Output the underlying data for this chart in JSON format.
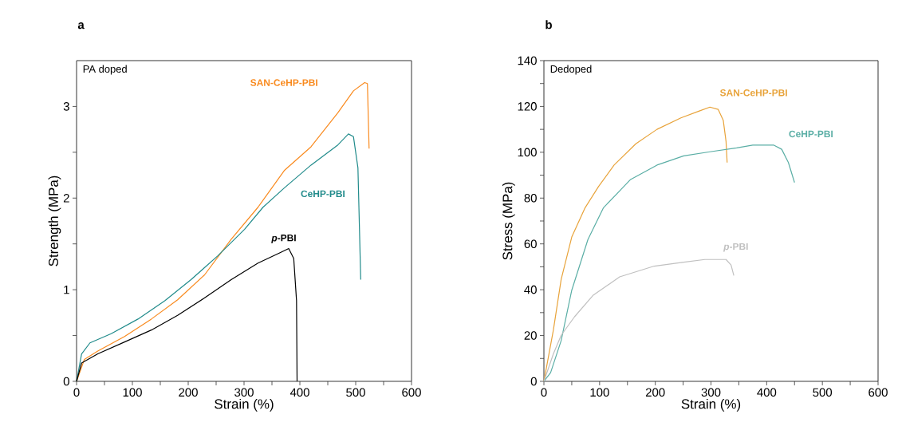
{
  "chart_data": [
    {
      "type": "line",
      "title": "a",
      "xlabel": "Strain (%)",
      "ylabel": "Strength (MPa)",
      "annotations": [
        "PA doped"
      ],
      "xlim": [
        0,
        600
      ],
      "ylim": [
        0,
        3.5
      ],
      "xticks": [
        0,
        {
          "value": 50,
          "label": null
        },
        100,
        {
          "value": 150,
          "label": null
        },
        200,
        {
          "value": 250,
          "label": null
        },
        300,
        {
          "value": 350,
          "label": null
        },
        400,
        {
          "value": 450,
          "label": null
        },
        500,
        {
          "value": 550,
          "label": null
        },
        600
      ],
      "yticks": [
        0,
        {
          "value": 0.5,
          "label": null
        },
        1,
        {
          "value": 1.5,
          "label": null
        },
        2,
        {
          "value": 2.5,
          "label": null
        },
        3
      ],
      "series": [
        {
          "name": "SAN-CeHP-PBI",
          "color": "#f98a1e",
          "x": [
            0,
            14,
            38,
            86,
            134,
            181,
            229,
            277,
            325,
            372,
            420,
            468,
            496,
            516,
            521,
            524
          ],
          "values": [
            0,
            0.24,
            0.33,
            0.49,
            0.68,
            0.89,
            1.16,
            1.55,
            1.9,
            2.3,
            2.56,
            2.93,
            3.17,
            3.26,
            3.25,
            2.54
          ]
        },
        {
          "name": "CeHP-PBI",
          "color": "#218b8b",
          "x": [
            0,
            9,
            24,
            62,
            110,
            158,
            205,
            253,
            301,
            334,
            372,
            420,
            468,
            487,
            496,
            504,
            509
          ],
          "values": [
            0,
            0.3,
            0.42,
            0.52,
            0.68,
            0.88,
            1.11,
            1.37,
            1.66,
            1.9,
            2.11,
            2.36,
            2.58,
            2.7,
            2.67,
            2.33,
            1.11
          ]
        },
        {
          "name": "*p*-PBI",
          "color": "#000000",
          "x": [
            0,
            9,
            38,
            86,
            134,
            181,
            229,
            277,
            325,
            363,
            380,
            389,
            394,
            395
          ],
          "values": [
            0,
            0.2,
            0.3,
            0.43,
            0.56,
            0.72,
            0.91,
            1.11,
            1.29,
            1.4,
            1.45,
            1.34,
            0.88,
            0
          ]
        }
      ]
    },
    {
      "type": "line",
      "title": "b",
      "xlabel": "Strain (%)",
      "ylabel": "Stress (MPa)",
      "annotations": [
        "Dedoped"
      ],
      "xlim": [
        0,
        600
      ],
      "ylim": [
        0,
        140
      ],
      "xticks": [
        0,
        {
          "value": 50,
          "label": null
        },
        100,
        {
          "value": 150,
          "label": null
        },
        200,
        {
          "value": 250,
          "label": null
        },
        300,
        {
          "value": 350,
          "label": null
        },
        400,
        {
          "value": 450,
          "label": null
        },
        500,
        {
          "value": 550,
          "label": null
        },
        600
      ],
      "yticks": [
        0,
        {
          "value": 10,
          "label": null
        },
        20,
        {
          "value": 30,
          "label": null
        },
        40,
        {
          "value": 50,
          "label": null
        },
        60,
        {
          "value": 70,
          "label": null
        },
        80,
        {
          "value": 90,
          "label": null
        },
        100,
        {
          "value": 110,
          "label": null
        },
        120,
        {
          "value": 130,
          "label": null
        },
        140
      ],
      "series": [
        {
          "name": "SAN-CeHP-PBI",
          "color": "#e8a33a",
          "x": [
            0,
            17,
            31,
            50,
            74,
            98,
            126,
            165,
            203,
            246,
            279,
            298,
            313,
            322,
            327,
            329
          ],
          "values": [
            0,
            22.4,
            44.5,
            63,
            75.8,
            85,
            94.4,
            103.7,
            110,
            115,
            118,
            119.7,
            118.7,
            114,
            104.8,
            95.5
          ]
        },
        {
          "name": "CeHP-PBI",
          "color": "#5aaea5",
          "x": [
            0,
            12,
            31,
            50,
            79,
            107,
            155,
            203,
            251,
            298,
            346,
            375,
            413,
            427,
            439,
            450
          ],
          "values": [
            0,
            3.8,
            17.8,
            39.8,
            61.9,
            75.8,
            88,
            94.4,
            98.4,
            100.2,
            101.9,
            103.1,
            103.1,
            101.3,
            95.5,
            86.8
          ]
        },
        {
          "name": "*p*-PBI",
          "color": "#c0c0c0",
          "x": [
            0,
            17,
            31,
            55,
            88,
            136,
            198,
            251,
            289,
            327,
            336,
            341
          ],
          "values": [
            0,
            12,
            20.1,
            28.2,
            37.5,
            45.6,
            50.3,
            52,
            53.2,
            53.2,
            50.8,
            46.2
          ]
        }
      ]
    }
  ]
}
